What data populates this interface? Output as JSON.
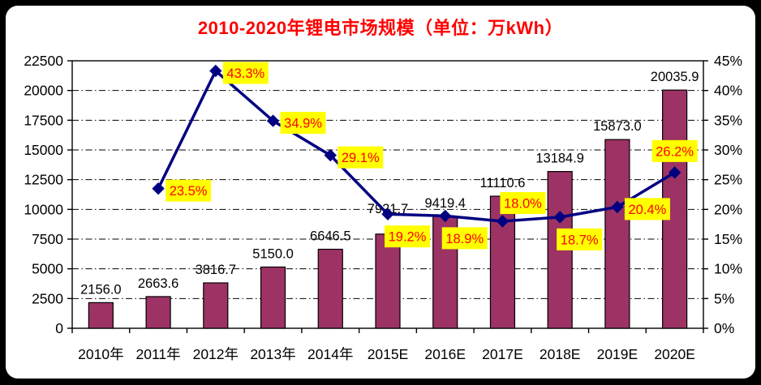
{
  "colors": {
    "frame": "#000000",
    "background": "#FFFFFF",
    "title_text": "#FF0000",
    "bar_fill": "#9C3364",
    "bar_border": "#000000",
    "line": "#000080",
    "marker": "#000080",
    "pct_label_bg": "#FFFF00",
    "pct_label_text": "#FF0000",
    "axis_text": "#000000",
    "gridline": "#000000"
  },
  "chart_data": {
    "type": "bar",
    "combo": "bar+line",
    "title": "2010-2020年锂电市场规模（单位：万kWh）",
    "categories": [
      "2010年",
      "2011年",
      "2012年",
      "2013年",
      "2014年",
      "2015E",
      "2016E",
      "2017E",
      "2018E",
      "2019E",
      "2020E"
    ],
    "series": [
      {
        "id": "market-size-bars",
        "type": "bar",
        "axis": "left",
        "values": [
          2156.0,
          2663.6,
          3816.7,
          5150.0,
          6646.5,
          7921.7,
          9419.4,
          11110.6,
          13184.9,
          15873.0,
          20035.9
        ],
        "labels": [
          "2156.0",
          "2663.6",
          "3816.7",
          "5150.0",
          "6646.5",
          "7921.7",
          "9419.4",
          "11110.6",
          "13184.9",
          "15873.0",
          "20035.9"
        ]
      },
      {
        "id": "growth-rate-line",
        "type": "line",
        "axis": "right",
        "values": [
          null,
          23.5,
          43.3,
          34.9,
          29.1,
          19.2,
          18.9,
          18.0,
          18.7,
          20.4,
          26.2
        ],
        "labels": [
          null,
          "23.5%",
          "43.3%",
          "34.9%",
          "29.1%",
          "19.2%",
          "18.9%",
          "18.0%",
          "18.7%",
          "20.4%",
          "26.2%"
        ],
        "label_placements": [
          null,
          "right",
          "right",
          "right",
          "right",
          "below",
          "below",
          "above",
          "below",
          "right",
          "above-center"
        ]
      }
    ],
    "left_axis": {
      "min": 0,
      "max": 22500,
      "step": 2500,
      "ticks": [
        "0",
        "2500",
        "5000",
        "7500",
        "10000",
        "12500",
        "15000",
        "17500",
        "20000",
        "22500"
      ]
    },
    "right_axis": {
      "min": 0,
      "max": 45,
      "step": 5,
      "ticks": [
        "0%",
        "5%",
        "10%",
        "15%",
        "20%",
        "25%",
        "30%",
        "35%",
        "40%",
        "45%"
      ]
    },
    "grid": "horizontal-dash-dot",
    "legend": "none"
  }
}
